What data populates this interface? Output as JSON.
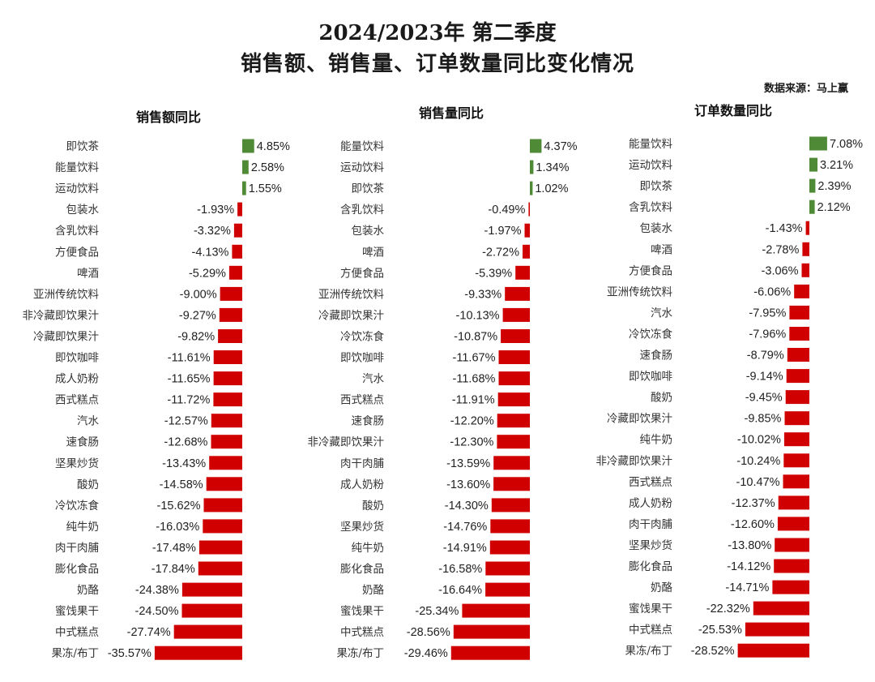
{
  "title": "2024/2023年 第二季度",
  "subtitle": "销售额、销售量、订单数量同比变化情况",
  "source": "数据来源：马上赢",
  "colors": {
    "positive": "#4f8a36",
    "negative": "#d00000"
  },
  "chart_data": [
    {
      "type": "bar",
      "orientation": "horizontal",
      "title": "销售额同比",
      "unit": "%",
      "categories": [
        "即饮茶",
        "能量饮料",
        "运动饮料",
        "包装水",
        "含乳饮料",
        "方便食品",
        "啤酒",
        "亚洲传统饮料",
        "非冷藏即饮果汁",
        "冷藏即饮果汁",
        "即饮咖啡",
        "成人奶粉",
        "西式糕点",
        "汽水",
        "速食肠",
        "坚果炒货",
        "酸奶",
        "冷饮冻食",
        "纯牛奶",
        "肉干肉脯",
        "膨化食品",
        "奶酪",
        "蜜饯果干",
        "中式糕点",
        "果冻/布丁"
      ],
      "values": [
        4.85,
        2.58,
        1.55,
        -1.93,
        -3.32,
        -4.13,
        -5.29,
        -9.0,
        -9.27,
        -9.82,
        -11.61,
        -11.65,
        -11.72,
        -12.57,
        -12.68,
        -13.43,
        -14.58,
        -15.62,
        -16.03,
        -17.48,
        -17.84,
        -24.38,
        -24.5,
        -27.74,
        -35.57
      ],
      "labels": [
        "4.85%",
        "2.58%",
        "1.55%",
        "-1.93%",
        "-3.32%",
        "-4.13%",
        "-5.29%",
        "-9.00%",
        "-9.27%",
        "-9.82%",
        "-11.61%",
        "-11.65%",
        "-11.72%",
        "-12.57%",
        "-12.68%",
        "-13.43%",
        "-14.58%",
        "-15.62%",
        "-16.03%",
        "-17.48%",
        "-17.84%",
        "-24.38%",
        "-24.50%",
        "-27.74%",
        "-35.57%"
      ]
    },
    {
      "type": "bar",
      "orientation": "horizontal",
      "title": "销售量同比",
      "unit": "%",
      "categories": [
        "能量饮料",
        "运动饮料",
        "即饮茶",
        "含乳饮料",
        "包装水",
        "啤酒",
        "方便食品",
        "亚洲传统饮料",
        "冷藏即饮果汁",
        "冷饮冻食",
        "即饮咖啡",
        "汽水",
        "西式糕点",
        "速食肠",
        "非冷藏即饮果汁",
        "肉干肉脯",
        "成人奶粉",
        "酸奶",
        "坚果炒货",
        "纯牛奶",
        "膨化食品",
        "奶酪",
        "蜜饯果干",
        "中式糕点",
        "果冻/布丁"
      ],
      "values": [
        4.37,
        1.34,
        1.02,
        -0.49,
        -1.97,
        -2.72,
        -5.39,
        -9.33,
        -10.13,
        -10.87,
        -11.67,
        -11.68,
        -11.91,
        -12.2,
        -12.3,
        -13.59,
        -13.6,
        -14.3,
        -14.76,
        -14.91,
        -16.58,
        -16.64,
        -25.34,
        -28.56,
        -29.46
      ],
      "labels": [
        "4.37%",
        "1.34%",
        "1.02%",
        "-0.49%",
        "-1.97%",
        "-2.72%",
        "-5.39%",
        "-9.33%",
        "-10.13%",
        "-10.87%",
        "-11.67%",
        "-11.68%",
        "-11.91%",
        "-12.20%",
        "-12.30%",
        "-13.59%",
        "-13.60%",
        "-14.30%",
        "-14.76%",
        "-14.91%",
        "-16.58%",
        "-16.64%",
        "-25.34%",
        "-28.56%",
        "-29.46%"
      ]
    },
    {
      "type": "bar",
      "orientation": "horizontal",
      "title": "订单数量同比",
      "unit": "%",
      "categories": [
        "能量饮料",
        "运动饮料",
        "即饮茶",
        "含乳饮料",
        "包装水",
        "啤酒",
        "方便食品",
        "亚洲传统饮料",
        "汽水",
        "冷饮冻食",
        "速食肠",
        "即饮咖啡",
        "酸奶",
        "冷藏即饮果汁",
        "纯牛奶",
        "非冷藏即饮果汁",
        "西式糕点",
        "成人奶粉",
        "肉干肉脯",
        "坚果炒货",
        "膨化食品",
        "奶酪",
        "蜜饯果干",
        "中式糕点",
        "果冻/布丁"
      ],
      "values": [
        7.08,
        3.21,
        2.39,
        2.12,
        -1.43,
        -2.78,
        -3.06,
        -6.06,
        -7.95,
        -7.96,
        -8.79,
        -9.14,
        -9.45,
        -9.85,
        -10.02,
        -10.24,
        -10.47,
        -12.37,
        -12.6,
        -13.8,
        -14.12,
        -14.71,
        -22.32,
        -25.53,
        -28.52
      ],
      "labels": [
        "7.08%",
        "3.21%",
        "2.39%",
        "2.12%",
        "-1.43%",
        "-2.78%",
        "-3.06%",
        "-6.06%",
        "-7.95%",
        "-7.96%",
        "-8.79%",
        "-9.14%",
        "-9.45%",
        "-9.85%",
        "-10.02%",
        "-10.24%",
        "-10.47%",
        "-12.37%",
        "-12.60%",
        "-13.80%",
        "-14.12%",
        "-14.71%",
        "-22.32%",
        "-25.53%",
        "-28.52%"
      ]
    }
  ]
}
